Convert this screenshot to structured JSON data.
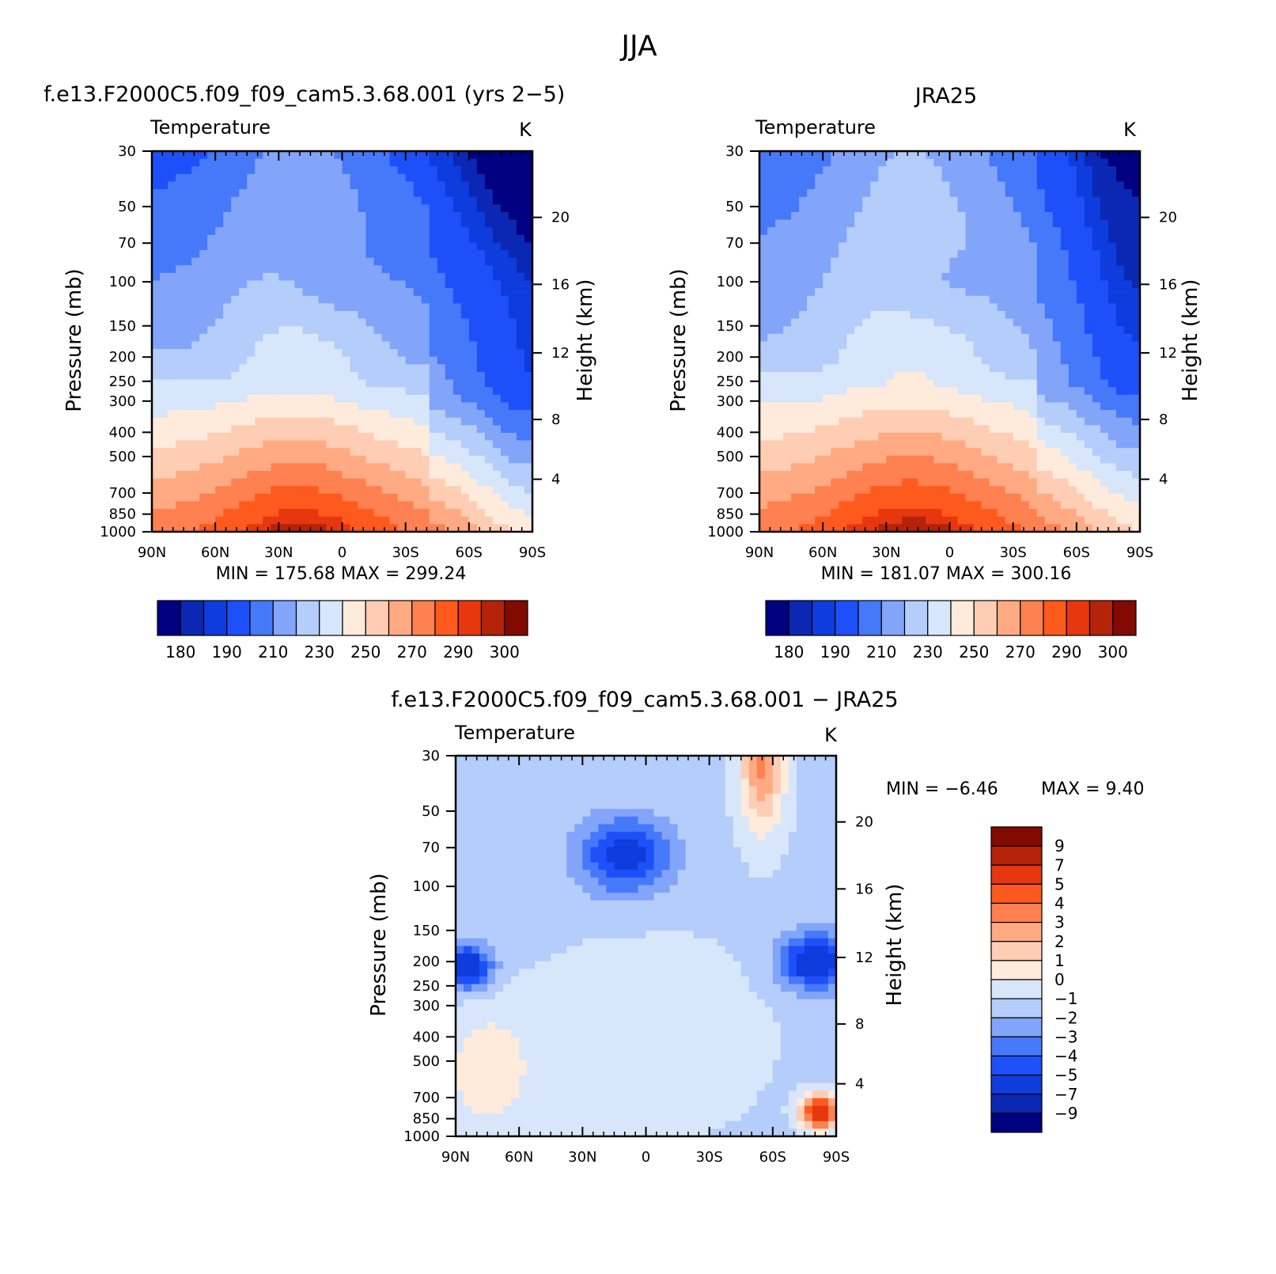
{
  "figure": {
    "title": "JJA"
  },
  "colors": {
    "abs_scale": [
      "#000080",
      "#0A28B4",
      "#0F3CDC",
      "#1E50FA",
      "#4678FA",
      "#82A5FA",
      "#B4CDFA",
      "#D7E6FA",
      "#FFEBDC",
      "#FFCDB4",
      "#FFAA82",
      "#FF8050",
      "#FF5A1E",
      "#E6370F",
      "#B4230A",
      "#820A00"
    ],
    "diff_scale": [
      "#000080",
      "#0A28B4",
      "#0F3CDC",
      "#1E50FA",
      "#4678FA",
      "#82A5FA",
      "#B4CDFA",
      "#D7E6FA",
      "#FFEBDC",
      "#FFCDB4",
      "#FFAA82",
      "#FF8050",
      "#FF5A1E",
      "#E6370F",
      "#B4230A",
      "#820A00"
    ]
  },
  "panels": {
    "model": {
      "title": "f.e13.F2000C5.f09_f09_cam5.3.68.001 (yrs 2−5)",
      "field_label": "Temperature",
      "units": "K",
      "ylabel": "Pressure (mb)",
      "ylabel_right": "Height (km)",
      "stats": "MIN = 175.68   MAX = 299.24"
    },
    "obs": {
      "title": "JRA25",
      "field_label": "Temperature",
      "units": "K",
      "ylabel": "Pressure (mb)",
      "ylabel_right": "Height (km)",
      "stats": "MIN = 181.07   MAX = 300.16"
    },
    "diff": {
      "title": "f.e13.F2000C5.f09_f09_cam5.3.68.001 − JRA25",
      "field_label": "Temperature",
      "units": "K",
      "ylabel": "Pressure (mb)",
      "ylabel_right": "Height (km)",
      "stats_min": "MIN =   −6.46",
      "stats_max": "MAX =    9.40"
    }
  },
  "chart_data": [
    {
      "type": "heatmap",
      "title": "f.e13.F2000C5.f09_f09_cam5.3.68.001 (yrs 2−5)",
      "field": "Temperature",
      "units": "K",
      "x_ticks": [
        "90N",
        "60N",
        "30N",
        "0",
        "30S",
        "60S",
        "90S"
      ],
      "y_ticks": [
        "30",
        "50",
        "70",
        "100",
        "150",
        "200",
        "250",
        "300",
        "400",
        "500",
        "700",
        "850",
        "1000"
      ],
      "right_ticks": [
        "20",
        "16",
        "12",
        "8",
        "4"
      ],
      "xlim": [
        90,
        -90
      ],
      "ylim": [
        1000,
        30
      ],
      "ylog": true,
      "min": 175.68,
      "max": 299.24,
      "cbar_ticks": [
        "180",
        "190",
        "210",
        "230",
        "250",
        "270",
        "290",
        "300"
      ],
      "levels": [
        180,
        185,
        190,
        200,
        210,
        220,
        230,
        240,
        250,
        260,
        270,
        280,
        290,
        295,
        300
      ],
      "centers": [
        {
          "lat": 5,
          "p": 90,
          "T": 195,
          "dlat": 32,
          "dp": 0.45
        },
        {
          "lat": -85,
          "p": 32,
          "T": 185,
          "dlat": 18,
          "dp": 0.6
        },
        {
          "lat": -80,
          "p": 120,
          "T": 205,
          "dlat": 25,
          "dp": 1.0
        }
      ]
    },
    {
      "type": "heatmap",
      "title": "JRA25",
      "field": "Temperature",
      "units": "K",
      "x_ticks": [
        "90N",
        "60N",
        "30N",
        "0",
        "30S",
        "60S",
        "90S"
      ],
      "y_ticks": [
        "30",
        "50",
        "70",
        "100",
        "150",
        "200",
        "250",
        "300",
        "400",
        "500",
        "700",
        "850",
        "1000"
      ],
      "right_ticks": [
        "20",
        "16",
        "12",
        "8",
        "4"
      ],
      "xlim": [
        90,
        -90
      ],
      "ylim": [
        1000,
        30
      ],
      "ylog": true,
      "min": 181.07,
      "max": 300.16,
      "cbar_ticks": [
        "180",
        "190",
        "210",
        "230",
        "250",
        "270",
        "290",
        "300"
      ],
      "levels": [
        180,
        185,
        190,
        200,
        210,
        220,
        230,
        240,
        250,
        260,
        270,
        280,
        290,
        295,
        300
      ]
    },
    {
      "type": "heatmap",
      "title": "f.e13.F2000C5.f09_f09_cam5.3.68.001 − JRA25",
      "field": "Temperature",
      "units": "K",
      "x_ticks": [
        "90N",
        "60N",
        "30N",
        "0",
        "30S",
        "60S",
        "90S"
      ],
      "y_ticks": [
        "30",
        "50",
        "70",
        "100",
        "150",
        "200",
        "250",
        "300",
        "400",
        "500",
        "700",
        "850",
        "1000"
      ],
      "right_ticks": [
        "20",
        "16",
        "12",
        "8",
        "4"
      ],
      "xlim": [
        90,
        -90
      ],
      "ylim": [
        1000,
        30
      ],
      "ylog": true,
      "min": -6.46,
      "max": 9.4,
      "cbar_ticks": [
        "9",
        "7",
        "5",
        "4",
        "3",
        "2",
        "1",
        "0",
        "−1",
        "−2",
        "−3",
        "−4",
        "−5",
        "−7",
        "−9"
      ],
      "levels": [
        -9,
        -7,
        -5,
        -4,
        -3,
        -2,
        -1,
        0,
        1,
        2,
        3,
        4,
        5,
        7,
        9
      ]
    }
  ]
}
